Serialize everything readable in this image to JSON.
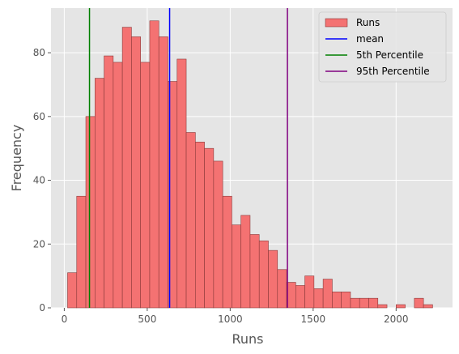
{
  "chart_data": {
    "type": "bar",
    "subtype": "histogram",
    "xlabel": "Runs",
    "ylabel": "Frequency",
    "xlim": [
      -80,
      2340
    ],
    "ylim": [
      0,
      94
    ],
    "xticks": [
      0,
      500,
      1000,
      1500,
      2000
    ],
    "yticks": [
      0,
      20,
      40,
      60,
      80
    ],
    "grid": true,
    "legend_position": "top-right",
    "series": [
      {
        "name": "Runs",
        "color": "#f47272",
        "edge_color": "#8b3a3a",
        "bin_width": 55,
        "bin_starts": [
          20,
          75,
          130,
          185,
          240,
          295,
          350,
          405,
          460,
          515,
          570,
          625,
          680,
          735,
          790,
          845,
          900,
          955,
          1010,
          1065,
          1120,
          1175,
          1230,
          1285,
          1340,
          1395,
          1450,
          1505,
          1560,
          1615,
          1670,
          1725,
          1780,
          1835,
          1890,
          1945,
          2000,
          2055,
          2110,
          2165
        ],
        "values": [
          11,
          35,
          60,
          72,
          79,
          77,
          88,
          85,
          77,
          90,
          85,
          71,
          78,
          55,
          52,
          50,
          46,
          35,
          26,
          29,
          23,
          21,
          18,
          12,
          8,
          7,
          10,
          6,
          9,
          5,
          5,
          3,
          3,
          3,
          1,
          0,
          1,
          0,
          3,
          1
        ]
      }
    ],
    "lines": [
      {
        "name": "mean",
        "x": 635,
        "color": "#0000ff"
      },
      {
        "name": "5th Percentile",
        "x": 152,
        "color": "#008000"
      },
      {
        "name": "95th Percentile",
        "x": 1345,
        "color": "#800080"
      }
    ]
  }
}
